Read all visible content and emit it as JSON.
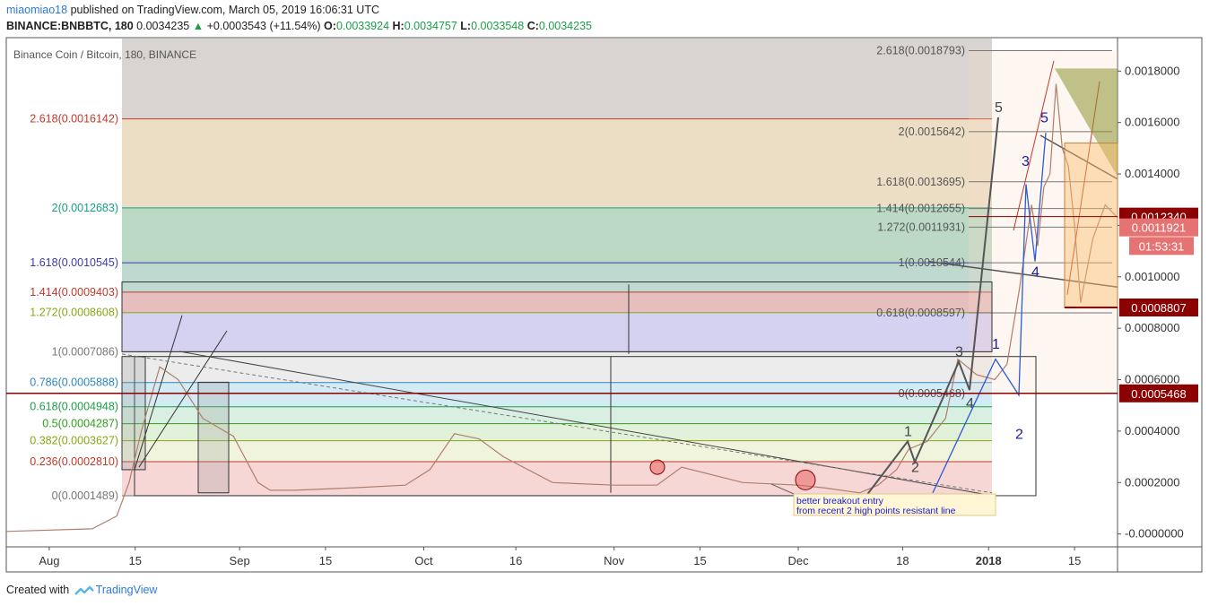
{
  "header": {
    "user": "miaomiao18",
    "published_text": "published on TradingView.com, March 05, 2019 16:06:31 UTC",
    "symbol": "BINANCE:BNBBTC, 180",
    "last": "0.0034235",
    "change": "+0.0003543 (+11.54%)",
    "o_label": "O:",
    "o": "0.0033924",
    "h_label": "H:",
    "h": "0.0034757",
    "l_label": "L:",
    "l": "0.0033548",
    "c_label": "C:",
    "c": "0.0034235"
  },
  "footer": {
    "created_with": "Created with",
    "brand": "TradingView"
  },
  "chart_data": {
    "type": "line",
    "title": "Binance Coin / Bitcoin, 180, BINANCE",
    "y_axis": {
      "ticks": [
        "0.0018000",
        "0.0016000",
        "0.0014000",
        "0.0012000",
        "0.0010000",
        "0.0008000",
        "0.0006000",
        "0.0004000",
        "0.0002000",
        "-0.0000000"
      ],
      "tick_values": [
        0.0018,
        0.0016,
        0.0014,
        0.0012,
        0.001,
        0.0008,
        0.0006,
        0.0004,
        0.0002,
        0.0
      ],
      "range": [
        -5e-05,
        0.00193
      ]
    },
    "x_axis": {
      "ticks": [
        "Aug",
        "15",
        "Sep",
        "15",
        "Oct",
        "16",
        "Nov",
        "15",
        "Dec",
        "18",
        "2018",
        "15"
      ],
      "bold_ticks": [
        "2018"
      ]
    },
    "price_x": [
      "2017-07-25",
      "2017-08-08",
      "2017-08-12",
      "2017-08-14",
      "2017-08-16",
      "2017-08-19",
      "2017-08-22",
      "2017-08-26",
      "2017-08-31",
      "2017-09-04",
      "2017-09-06",
      "2017-09-10",
      "2017-09-20",
      "2017-09-28",
      "2017-10-02",
      "2017-10-06",
      "2017-10-10",
      "2017-10-14",
      "2017-10-22",
      "2017-11-01",
      "2017-11-08",
      "2017-11-12",
      "2017-11-22",
      "2017-12-01",
      "2017-12-05",
      "2017-12-11",
      "2017-12-14",
      "2017-12-17",
      "2017-12-19",
      "2017-12-22",
      "2017-12-25",
      "2017-12-27",
      "2017-12-30",
      "2018-01-02",
      "2018-01-04",
      "2018-01-06",
      "2018-01-08",
      "2018-01-09",
      "2018-01-10",
      "2018-01-11",
      "2018-01-12",
      "2018-01-13",
      "2018-01-14",
      "2018-01-15",
      "2018-01-16",
      "2018-01-18",
      "2018-01-20",
      "2018-01-22"
    ],
    "price_y": [
      1e-05,
      2e-05,
      7e-05,
      0.0002,
      0.0004,
      0.00065,
      0.0006,
      0.00045,
      0.00038,
      0.0002,
      0.00017,
      0.00017,
      0.00018,
      0.00019,
      0.00025,
      0.00039,
      0.00037,
      0.0003,
      0.0002,
      0.00019,
      0.00019,
      0.00026,
      0.0002,
      0.00019,
      0.00018,
      0.00016,
      0.00019,
      0.00025,
      0.00033,
      0.00036,
      0.00045,
      0.00068,
      0.00062,
      0.0006,
      0.00066,
      0.00095,
      0.00128,
      0.00112,
      0.00135,
      0.0014,
      0.00175,
      0.0015,
      0.00143,
      0.0012,
      0.0009,
      0.00115,
      0.00128,
      0.00123
    ],
    "series_color": "#b07e6c",
    "fib_left": {
      "levels": [
        {
          "label": "2.618(0.0016142)",
          "value": 0.0016142,
          "color": "#c0392b"
        },
        {
          "label": "2(0.0012683)",
          "value": 0.0012683,
          "color": "#16a085"
        },
        {
          "label": "1.618(0.0010545)",
          "value": 0.0010545,
          "color": "#3a3aa8"
        },
        {
          "label": "1.414(0.0009403)",
          "value": 0.0009403,
          "color": "#c0392b"
        },
        {
          "label": "1.272(0.0008608)",
          "value": 0.0008608,
          "color": "#86a815"
        },
        {
          "label": "1(0.0007086)",
          "value": 0.0007086,
          "color": "#777777"
        },
        {
          "label": "0.786(0.0005888)",
          "value": 0.0005888,
          "color": "#2e86c1"
        },
        {
          "label": "0.618(0.0004948)",
          "value": 0.0004948,
          "color": "#1e9e4a"
        },
        {
          "label": "0.5(0.0004287)",
          "value": 0.0004287,
          "color": "#2e9e1a"
        },
        {
          "label": "0.382(0.0003627)",
          "value": 0.0003627,
          "color": "#86a815"
        },
        {
          "label": "0.236(0.0002810)",
          "value": 0.000281,
          "color": "#c0392b"
        },
        {
          "label": "0(0.0001489)",
          "value": 0.0001489,
          "color": "#777777"
        }
      ],
      "bands": [
        {
          "from": 0.0016142,
          "to": 0.00193,
          "color": "rgba(120,100,90,0.28)"
        },
        {
          "from": 0.0012683,
          "to": 0.0016142,
          "color": "rgba(200,160,90,0.35)"
        },
        {
          "from": 0.0010545,
          "to": 0.0012683,
          "color": "rgba(120,180,140,0.5)"
        },
        {
          "from": 0.0009403,
          "to": 0.0010545,
          "color": "rgba(110,170,150,0.45)"
        },
        {
          "from": 0.0008608,
          "to": 0.0009403,
          "color": "rgba(200,110,110,0.45)"
        },
        {
          "from": 0.0007086,
          "to": 0.0008608,
          "color": "rgba(150,140,220,0.40)"
        },
        {
          "from": 0.0005888,
          "to": 0.0007086,
          "color": "rgba(200,200,200,0.35)"
        },
        {
          "from": 0.0004948,
          "to": 0.0005888,
          "color": "rgba(160,210,230,0.45)"
        },
        {
          "from": 0.0004287,
          "to": 0.0004948,
          "color": "rgba(170,220,190,0.45)"
        },
        {
          "from": 0.0003627,
          "to": 0.0004287,
          "color": "rgba(190,225,170,0.45)"
        },
        {
          "from": 0.000281,
          "to": 0.0003627,
          "color": "rgba(225,230,180,0.45)"
        },
        {
          "from": 0.0001489,
          "to": 0.000281,
          "color": "rgba(240,180,180,0.55)"
        }
      ]
    },
    "fib_right": {
      "levels": [
        {
          "label": "2.618(0.0018793)",
          "value": 0.0018793
        },
        {
          "label": "2(0.0015642)",
          "value": 0.0015642
        },
        {
          "label": "1.618(0.0013695)",
          "value": 0.0013695
        },
        {
          "label": "1.414(0.0012655)",
          "value": 0.0012655
        },
        {
          "label": "1.272(0.0011931)",
          "value": 0.0011931
        },
        {
          "label": "1(0.0010544)",
          "value": 0.0010544
        },
        {
          "label": "0.618(0.0008597)",
          "value": 0.0008597
        },
        {
          "label": "0(0.0005468)",
          "value": 0.0005468
        }
      ]
    },
    "wave_labels_grey": [
      "1",
      "2",
      "3",
      "4",
      "5"
    ],
    "wave_labels_blue": [
      "1",
      "2",
      "3",
      "4",
      "5"
    ],
    "annotation": [
      "better breakout entry",
      "from recent 2 high points resistant line"
    ],
    "price_tags": [
      {
        "text": "0.0012340",
        "value": 0.001234,
        "color": "#8b0000"
      },
      {
        "text": "0.0011921",
        "value": 0.0011921,
        "color": "#e57373"
      },
      {
        "text": "01:53:31",
        "value": 0.00112,
        "color": "#e57373"
      },
      {
        "text": "0.0008807",
        "value": 0.0008807,
        "color": "#8b0000"
      },
      {
        "text": "0.0005468",
        "value": 0.0005468,
        "color": "#8b0000"
      }
    ],
    "legend": "none",
    "grid": false
  }
}
